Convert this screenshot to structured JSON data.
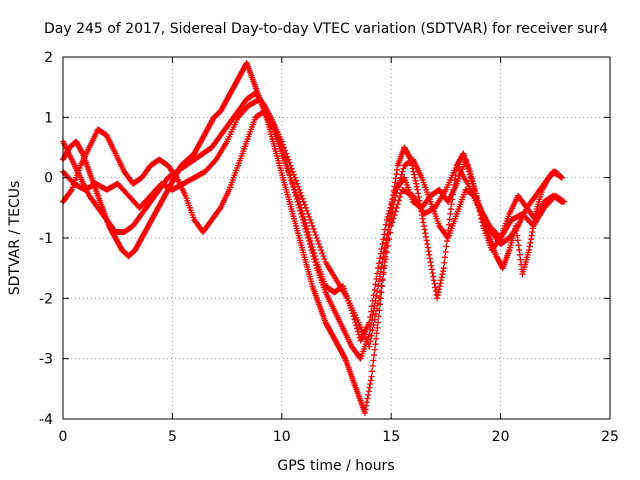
{
  "chart_data": {
    "type": "scatter",
    "title": "Day 245 of 2017, Sidereal Day-to-day VTEC variation (SDTVAR) for receiver sur4",
    "xlabel": "GPS time / hours",
    "ylabel": "SDTVAR / TECUs",
    "xlim": [
      0,
      25
    ],
    "ylim": [
      -4,
      2
    ],
    "xticks": [
      "0",
      "5",
      "10",
      "15",
      "20",
      "25"
    ],
    "yticks": [
      "-4",
      "-3",
      "-2",
      "-1",
      "0",
      "1",
      "2"
    ],
    "grid": true,
    "marker": "+",
    "color": "#ff0000",
    "series": [
      {
        "x": [
          0.0,
          0.3,
          0.6,
          0.9,
          1.2,
          1.5,
          1.8,
          2.1,
          2.4,
          2.7,
          3.0,
          3.3,
          3.6,
          3.9,
          4.2,
          4.5,
          4.8,
          5.1,
          5.4,
          5.7,
          6.0,
          6.3,
          6.6,
          6.9,
          7.2,
          7.5,
          7.8,
          8.1,
          8.4,
          8.7,
          9.0,
          9.3,
          9.6,
          9.9,
          10.2,
          10.5,
          10.8,
          11.1,
          11.4,
          11.7,
          12.0,
          12.3,
          12.6,
          12.9,
          13.2,
          13.5,
          13.8,
          14.1,
          14.4,
          14.7,
          15.0,
          15.3,
          15.6,
          15.9,
          16.2,
          16.5,
          16.8,
          17.1,
          17.4,
          17.7,
          18.0,
          18.3,
          18.6,
          18.9,
          19.2,
          19.5,
          19.8,
          20.1,
          20.4,
          20.7,
          21.0,
          21.3,
          21.6,
          21.9,
          22.2,
          22.5,
          22.8
        ],
        "y": [
          0.3,
          0.5,
          0.6,
          0.4,
          0.1,
          -0.2,
          -0.5,
          -0.8,
          -1.0,
          -1.2,
          -1.3,
          -1.2,
          -1.0,
          -0.8,
          -0.6,
          -0.4,
          -0.2,
          0.0,
          0.2,
          0.3,
          0.4,
          0.6,
          0.8,
          1.0,
          1.1,
          1.3,
          1.5,
          1.7,
          1.9,
          1.6,
          1.3,
          1.0,
          0.6,
          0.2,
          -0.2,
          -0.6,
          -1.0,
          -1.4,
          -1.8,
          -2.1,
          -2.4,
          -2.6,
          -2.8,
          -3.0,
          -3.3,
          -3.6,
          -3.9,
          -3.3,
          -2.4,
          -1.4,
          -0.5,
          0.2,
          0.5,
          0.3,
          -0.2,
          -0.8,
          -1.4,
          -2.0,
          -1.5,
          -0.6,
          0.2,
          0.4,
          0.1,
          -0.3,
          -0.7,
          -1.0,
          -1.3,
          -1.5,
          -1.2,
          -0.8,
          -1.6,
          -1.2,
          -0.6,
          -0.2,
          0.0,
          0.1,
          0.0
        ]
      },
      {
        "x": [
          0.0,
          0.4,
          0.8,
          1.2,
          1.6,
          2.0,
          2.4,
          2.8,
          3.2,
          3.6,
          4.0,
          4.4,
          4.8,
          5.2,
          5.6,
          6.0,
          6.4,
          6.8,
          7.2,
          7.6,
          8.0,
          8.4,
          8.8,
          9.2,
          9.6,
          10.0,
          10.4,
          10.8,
          11.2,
          11.6,
          12.0,
          12.4,
          12.8,
          13.2,
          13.6,
          14.0,
          14.4,
          14.8,
          15.2,
          15.6,
          16.0,
          16.4,
          16.8,
          17.2,
          17.6,
          18.0,
          18.4,
          18.8,
          19.2,
          19.6,
          20.0,
          20.4,
          20.8,
          21.2,
          21.6,
          22.0,
          22.4,
          22.8
        ],
        "y": [
          0.6,
          0.3,
          0.0,
          -0.3,
          -0.5,
          -0.7,
          -0.9,
          -0.9,
          -0.8,
          -0.6,
          -0.4,
          -0.2,
          0.0,
          0.1,
          0.2,
          0.3,
          0.4,
          0.5,
          0.7,
          0.9,
          1.1,
          1.3,
          1.4,
          1.2,
          0.9,
          0.5,
          0.0,
          -0.5,
          -1.0,
          -1.5,
          -1.9,
          -2.2,
          -2.5,
          -2.8,
          -3.0,
          -2.6,
          -1.8,
          -1.0,
          -0.3,
          0.2,
          0.3,
          0.0,
          -0.4,
          -0.8,
          -1.0,
          -0.6,
          -0.2,
          -0.3,
          -0.6,
          -0.9,
          -1.1,
          -1.0,
          -0.8,
          -0.5,
          -0.3,
          -0.1,
          0.1,
          0.0
        ]
      },
      {
        "x": [
          0.0,
          0.4,
          0.8,
          1.2,
          1.6,
          2.0,
          2.4,
          2.8,
          3.2,
          3.6,
          4.0,
          4.4,
          4.8,
          5.2,
          5.6,
          6.0,
          6.4,
          6.8,
          7.2,
          7.6,
          8.0,
          8.4,
          8.8,
          9.2,
          9.6,
          10.0,
          10.4,
          10.8,
          11.2,
          11.6,
          12.0,
          12.4,
          12.8,
          13.2,
          13.6,
          14.0,
          14.4,
          14.8,
          15.2,
          15.6,
          16.0,
          16.4,
          16.8,
          17.2,
          17.6,
          18.0,
          18.4,
          18.8,
          19.2,
          19.6,
          20.0,
          20.4,
          20.8,
          21.2,
          21.6,
          22.0,
          22.4,
          22.8
        ],
        "y": [
          -0.4,
          -0.2,
          0.2,
          0.5,
          0.8,
          0.7,
          0.4,
          0.1,
          -0.1,
          0.0,
          0.2,
          0.3,
          0.2,
          0.0,
          -0.3,
          -0.7,
          -0.9,
          -0.7,
          -0.5,
          -0.2,
          0.2,
          0.6,
          1.0,
          1.1,
          0.8,
          0.4,
          0.0,
          -0.4,
          -0.9,
          -1.4,
          -1.8,
          -1.9,
          -1.8,
          -2.2,
          -2.7,
          -2.4,
          -1.5,
          -0.7,
          -0.2,
          0.0,
          -0.4,
          -0.5,
          -0.3,
          -0.2,
          -0.4,
          -0.1,
          0.3,
          -0.2,
          -0.8,
          -1.2,
          -1.0,
          -0.6,
          -0.3,
          -0.5,
          -0.7,
          -0.4,
          -0.3,
          -0.4
        ]
      },
      {
        "x": [
          0.0,
          0.5,
          1.0,
          1.5,
          2.0,
          2.5,
          3.0,
          3.5,
          4.0,
          4.5,
          5.0,
          5.5,
          6.0,
          6.5,
          7.0,
          7.5,
          8.0,
          8.5,
          9.0,
          9.5,
          10.0,
          10.5,
          11.0,
          11.5,
          12.0,
          12.5,
          13.0,
          13.5,
          14.0,
          14.5,
          15.0,
          15.5,
          16.0,
          16.5,
          17.0,
          17.5,
          18.0,
          18.5,
          19.0,
          19.5,
          20.0,
          20.5,
          21.0,
          21.5,
          22.0,
          22.5,
          22.9
        ],
        "y": [
          0.1,
          -0.1,
          -0.2,
          -0.1,
          -0.2,
          -0.1,
          -0.3,
          -0.5,
          -0.3,
          -0.1,
          -0.2,
          -0.1,
          0.0,
          0.1,
          0.3,
          0.6,
          1.0,
          1.2,
          1.3,
          1.0,
          0.6,
          0.1,
          -0.4,
          -0.9,
          -1.4,
          -1.7,
          -2.0,
          -2.4,
          -2.8,
          -1.9,
          -0.8,
          -0.2,
          -0.3,
          -0.6,
          -0.5,
          -0.2,
          0.2,
          -0.1,
          -0.5,
          -0.8,
          -1.0,
          -0.7,
          -0.6,
          -0.8,
          -0.5,
          -0.3,
          -0.4
        ]
      }
    ]
  }
}
